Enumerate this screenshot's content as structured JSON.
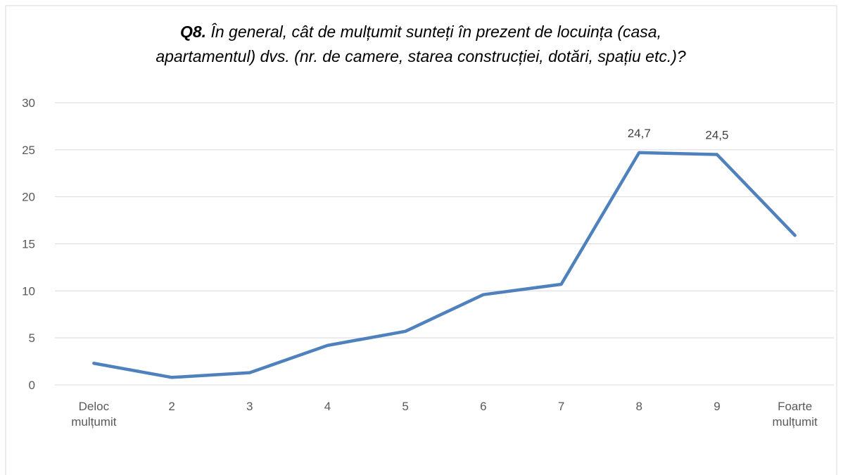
{
  "chart_data": {
    "type": "line",
    "title_label": "Q8.",
    "title_lines": [
      "În general, cât de mulțumit sunteți în prezent de locuința (casa,",
      "apartamentul) dvs. (nr. de camere, starea construcției, dotări, spațiu etc.)?"
    ],
    "categories": [
      "Deloc mulțumit",
      "2",
      "3",
      "4",
      "5",
      "6",
      "7",
      "8",
      "9",
      "Foarte mulțumit"
    ],
    "values": [
      2.3,
      0.8,
      1.3,
      4.2,
      5.7,
      9.6,
      10.7,
      24.7,
      24.5,
      15.9
    ],
    "value_labels": [
      null,
      null,
      null,
      null,
      null,
      null,
      null,
      "24,7",
      "24,5",
      null
    ],
    "color": "#4f81bd",
    "ylim": [
      0,
      30
    ],
    "yticks": [
      0,
      5,
      10,
      15,
      20,
      25,
      30
    ],
    "grid": true
  }
}
